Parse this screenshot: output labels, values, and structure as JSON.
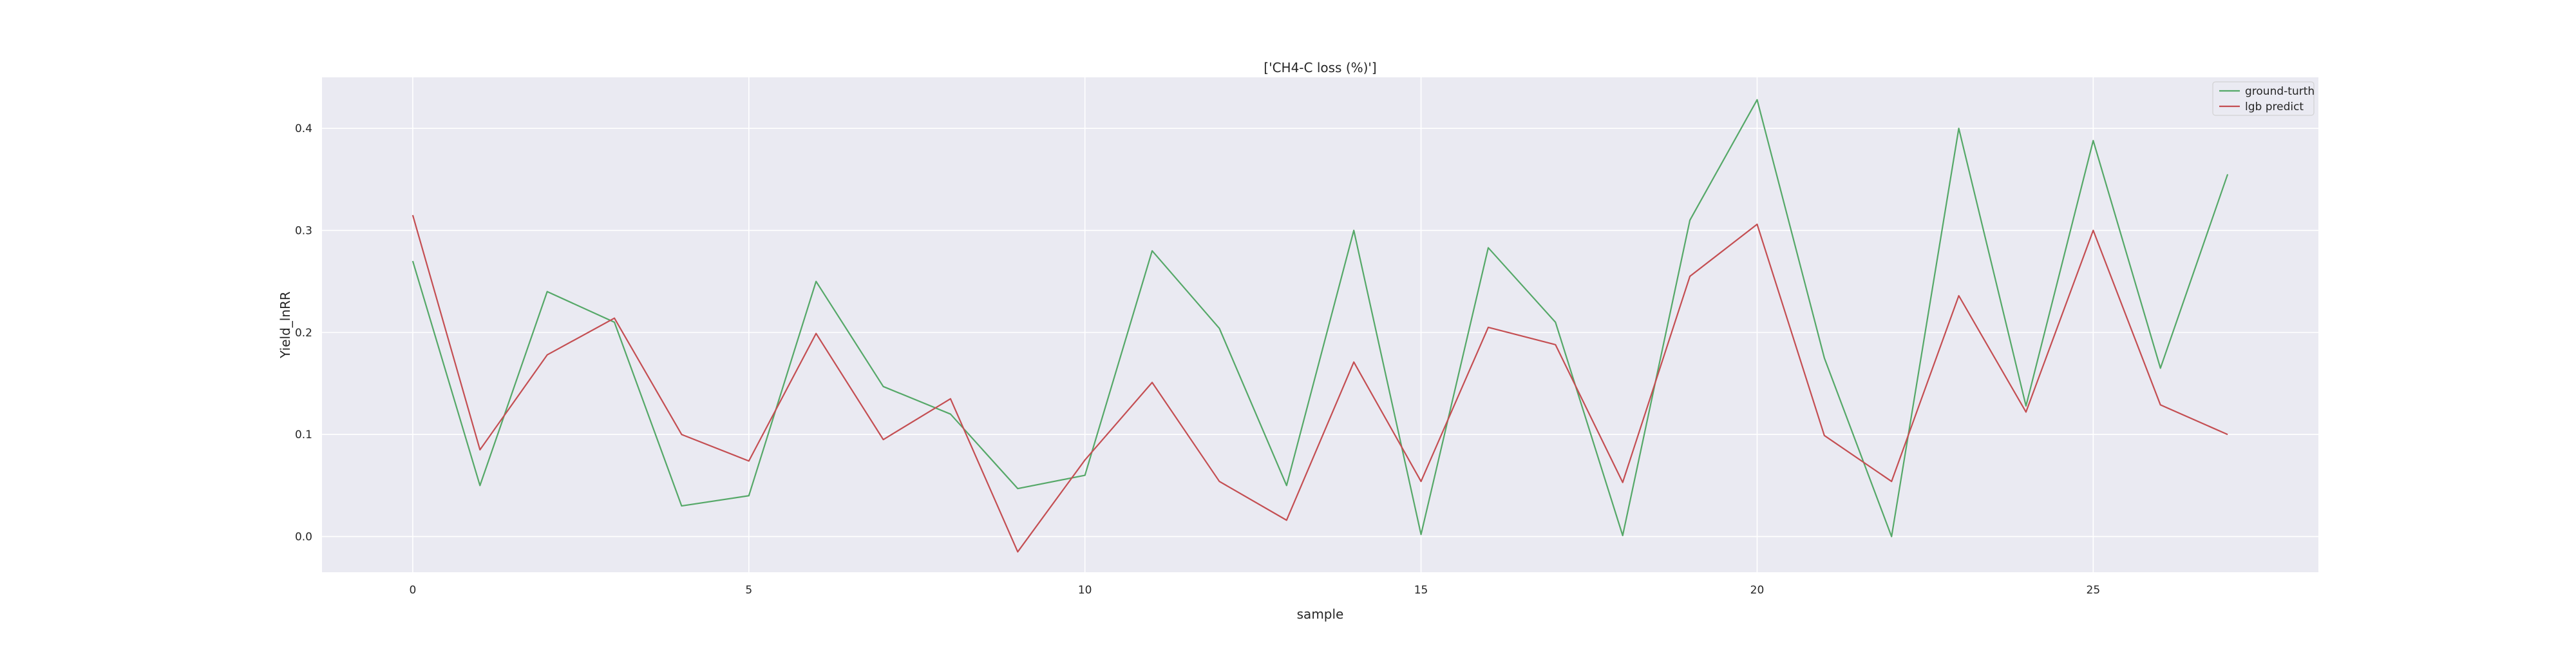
{
  "chart_data": {
    "type": "line",
    "title": "['CH4-C loss (%)']",
    "xlabel": "sample",
    "ylabel": "Yield_lnRR",
    "x": [
      0,
      1,
      2,
      3,
      4,
      5,
      6,
      7,
      8,
      9,
      10,
      11,
      12,
      13,
      14,
      15,
      16,
      17,
      18,
      19,
      20,
      21,
      22,
      23,
      24,
      25,
      26,
      27
    ],
    "xlim": [
      -1.35,
      28.35
    ],
    "ylim": [
      -0.035,
      0.45
    ],
    "xticks": [
      0,
      5,
      10,
      15,
      20,
      25
    ],
    "yticks": [
      0.0,
      0.1,
      0.2,
      0.3,
      0.4
    ],
    "xtick_labels": [
      "0",
      "5",
      "10",
      "15",
      "20",
      "25"
    ],
    "ytick_labels": [
      "0.0",
      "0.1",
      "0.2",
      "0.3",
      "0.4"
    ],
    "grid": true,
    "legend_position": "top-right",
    "series": [
      {
        "name": "ground-turth",
        "color": "#55a868",
        "values": [
          0.27,
          0.05,
          0.24,
          0.21,
          0.03,
          0.04,
          0.25,
          0.147,
          0.12,
          0.047,
          0.06,
          0.28,
          0.204,
          0.05,
          0.3,
          0.002,
          0.283,
          0.21,
          0.001,
          0.31,
          0.428,
          0.175,
          0.0,
          0.4,
          0.128,
          0.388,
          0.165,
          0.355
        ]
      },
      {
        "name": "lgb predict",
        "color": "#c44e52",
        "values": [
          0.315,
          0.085,
          0.178,
          0.214,
          0.1,
          0.074,
          0.199,
          0.095,
          0.135,
          -0.015,
          0.075,
          0.151,
          0.054,
          0.016,
          0.171,
          0.054,
          0.205,
          0.188,
          0.053,
          0.255,
          0.306,
          0.099,
          0.054,
          0.236,
          0.122,
          0.3,
          0.129,
          0.1
        ]
      }
    ]
  }
}
